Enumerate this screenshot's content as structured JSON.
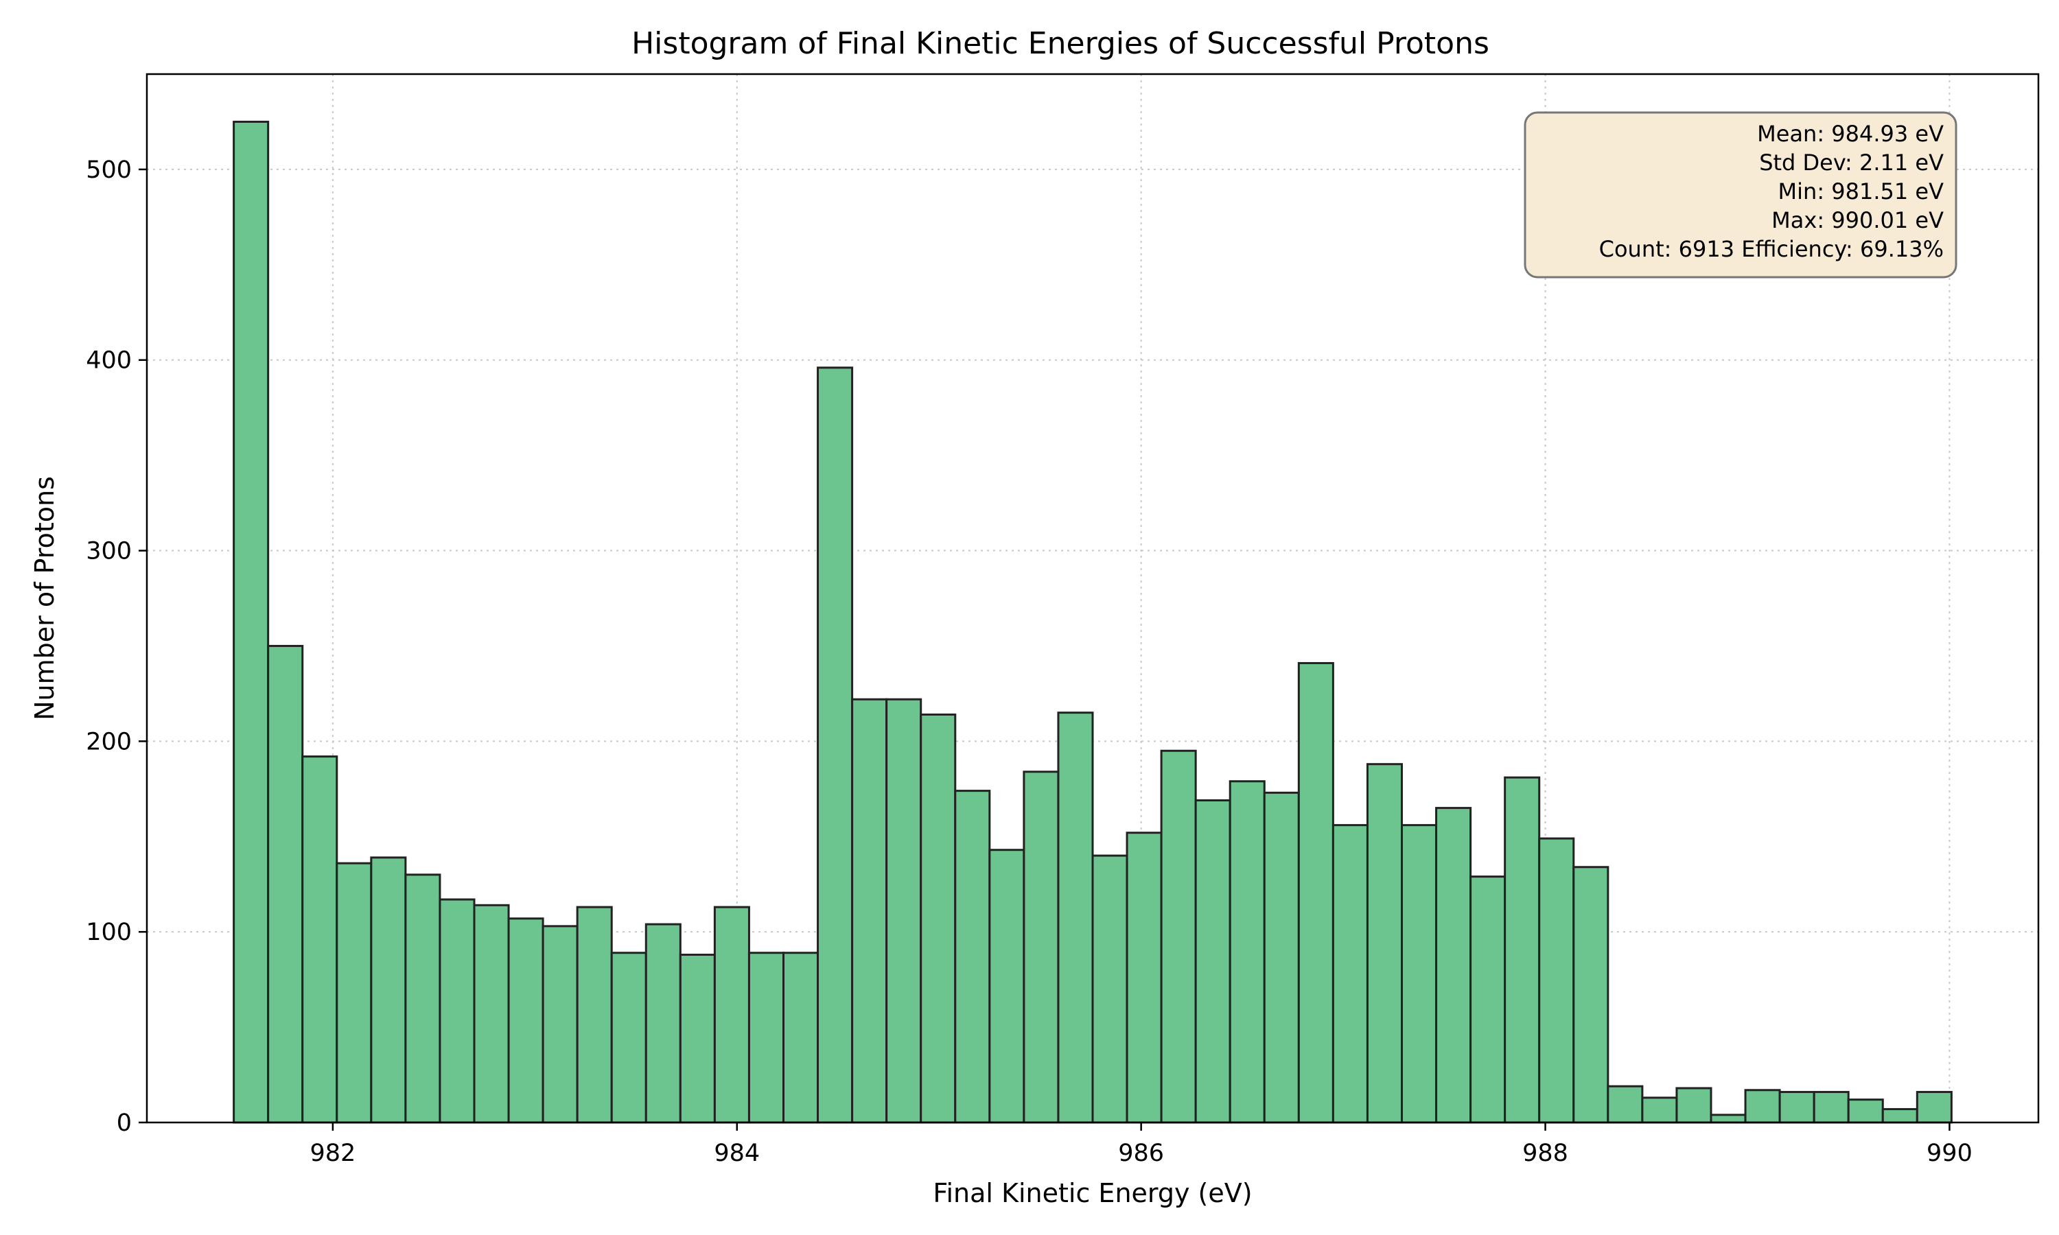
{
  "chart_data": {
    "type": "bar",
    "subtype": "histogram",
    "title": "Histogram of Final Kinetic Energies of Successful Protons",
    "xlabel": "Final Kinetic Energy (eV)",
    "ylabel": "Number of Protons",
    "xlim": [
      981.08,
      990.44
    ],
    "ylim": [
      0,
      550
    ],
    "xticks": [
      982,
      984,
      986,
      988,
      990
    ],
    "yticks": [
      0,
      100,
      200,
      300,
      400,
      500
    ],
    "grid": true,
    "bin_start": 981.51,
    "bin_end": 990.01,
    "bar_color": "#6cc58f",
    "edge_color": "#222222",
    "counts": [
      525,
      250,
      192,
      136,
      139,
      130,
      117,
      114,
      107,
      103,
      113,
      89,
      104,
      88,
      113,
      89,
      89,
      396,
      222,
      222,
      214,
      174,
      143,
      184,
      215,
      140,
      152,
      195,
      169,
      179,
      173,
      241,
      156,
      188,
      156,
      165,
      129,
      181,
      149,
      134,
      19,
      13,
      18,
      4,
      17,
      16,
      16,
      12,
      7,
      16
    ],
    "stats_box": {
      "lines": [
        "Mean: 984.93 eV",
        "Std Dev: 2.11 eV",
        "Min: 981.51 eV",
        "Max: 990.01 eV",
        "Count: 6913 Efficiency: 69.13%"
      ],
      "background": "#f8ebd5",
      "border": "#777777"
    }
  }
}
